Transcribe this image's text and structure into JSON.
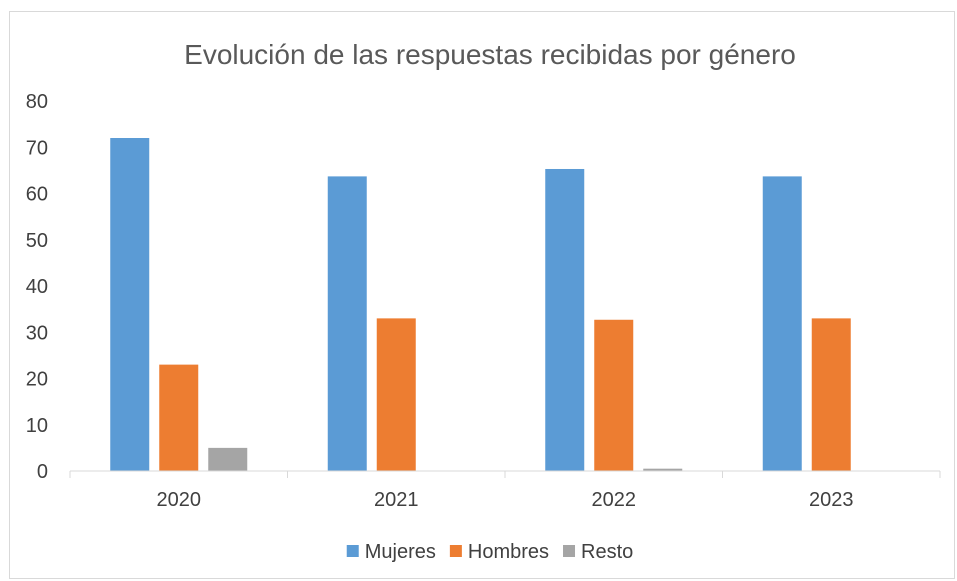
{
  "chart_data": {
    "type": "bar",
    "title": "Evolución de las respuestas recibidas por género",
    "xlabel": "",
    "ylabel": "",
    "categories": [
      "2020",
      "2021",
      "2022",
      "2023"
    ],
    "series": [
      {
        "name": "Mujeres",
        "color": "#5b9bd5",
        "values": [
          72,
          63.7,
          65.3,
          63.7
        ]
      },
      {
        "name": "Hombres",
        "color": "#ed7d31",
        "values": [
          23,
          33,
          32.7,
          33
        ]
      },
      {
        "name": "Resto",
        "color": "#a5a5a5",
        "values": [
          5,
          0,
          0.5,
          0
        ]
      }
    ],
    "ylim": [
      0,
      80
    ],
    "yticks": [
      "0",
      "10",
      "20",
      "30",
      "40",
      "50",
      "60",
      "70",
      "80"
    ],
    "grid": false,
    "legend": "bottom"
  }
}
